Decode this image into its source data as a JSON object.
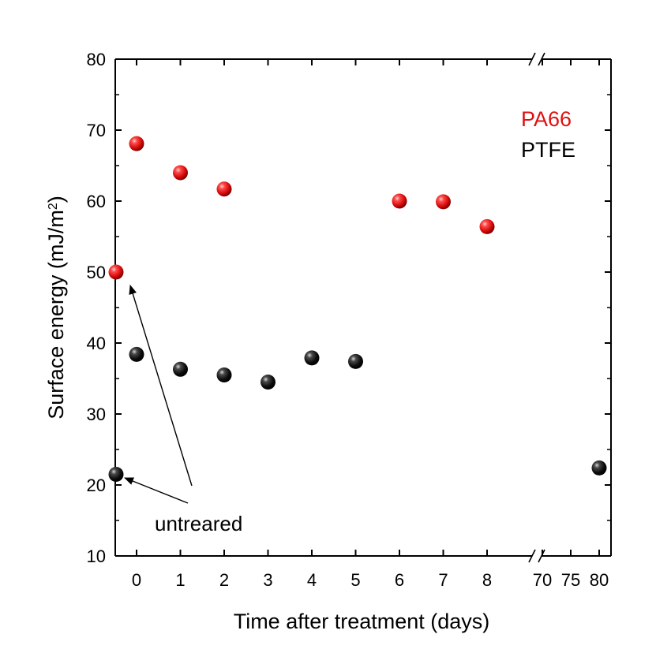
{
  "chart_data": {
    "type": "scatter",
    "xlabel": "Time after treatment (days)",
    "ylabel_main": "Surface energy (mJ/m",
    "ylabel_sup": "2",
    "ylabel_close": ")",
    "ylim": [
      10,
      80
    ],
    "yticks": [
      10,
      20,
      30,
      40,
      50,
      60,
      70,
      80
    ],
    "xticks_left": [
      0,
      1,
      2,
      3,
      4,
      5,
      6,
      7,
      8
    ],
    "xticks_right": [
      70,
      75,
      80
    ],
    "x_axis_break": "broken between 8 and 70",
    "series": [
      {
        "name": "PA66",
        "color": "#e01010",
        "points": [
          {
            "x": "untreated",
            "y": 50
          },
          {
            "x": 0,
            "y": 68.1
          },
          {
            "x": 1,
            "y": 64
          },
          {
            "x": 2,
            "y": 61.7
          },
          {
            "x": 6,
            "y": 60
          },
          {
            "x": 7,
            "y": 59.9
          },
          {
            "x": 8,
            "y": 56.4
          }
        ]
      },
      {
        "name": "PTFE",
        "color": "#111111",
        "points": [
          {
            "x": "untreated",
            "y": 21.5
          },
          {
            "x": 0,
            "y": 38.4
          },
          {
            "x": 1,
            "y": 36.3
          },
          {
            "x": 2,
            "y": 35.5
          },
          {
            "x": 3,
            "y": 34.5
          },
          {
            "x": 4,
            "y": 37.9
          },
          {
            "x": 5,
            "y": 37.4
          },
          {
            "x": 80,
            "y": 22.4
          }
        ]
      }
    ],
    "legend_position": "top-right",
    "annotation": "untreared"
  }
}
